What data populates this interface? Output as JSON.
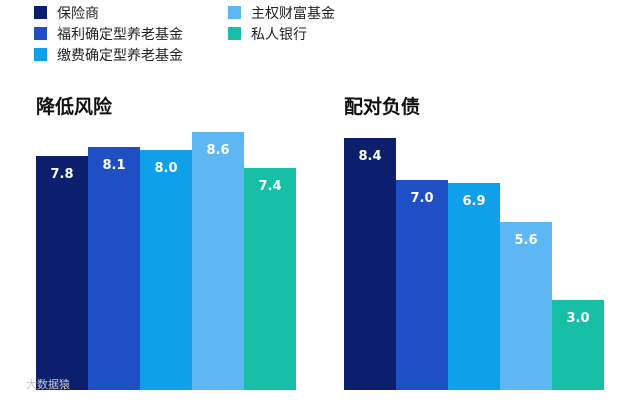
{
  "colors": {
    "保险商": "#0b1f6e",
    "福利确定型养老基金": "#1f4fc4",
    "缴费确定型养老基金": "#10a0ea",
    "主权财富基金": "#5cb7f2",
    "私人银行": "#17bfa6"
  },
  "legend": [
    "保险商",
    "福利确定型养老基金",
    "缴费确定型养老基金",
    "主权财富基金",
    "私人银行"
  ],
  "watermark": "大数据猿",
  "chart_data": [
    {
      "type": "bar",
      "title": "降低风险",
      "categories": [
        "保险商",
        "福利确定型养老基金",
        "缴费确定型养老基金",
        "主权财富基金",
        "私人银行"
      ],
      "values": [
        7.8,
        8.1,
        8.0,
        8.6,
        7.4
      ],
      "labels": [
        "7.8",
        "8.1",
        "8.0",
        "8.6",
        "7.4"
      ],
      "ylim": [
        0,
        10
      ],
      "grid": false
    },
    {
      "type": "bar",
      "title": "配对负债",
      "categories": [
        "保险商",
        "福利确定型养老基金",
        "缴费确定型养老基金",
        "主权财富基金",
        "私人银行"
      ],
      "values": [
        8.4,
        7.0,
        6.9,
        5.6,
        3.0
      ],
      "labels": [
        "8.4",
        "7.0",
        "6.9",
        "5.6",
        "3.0"
      ],
      "ylim": [
        0,
        10
      ],
      "grid": false
    }
  ]
}
